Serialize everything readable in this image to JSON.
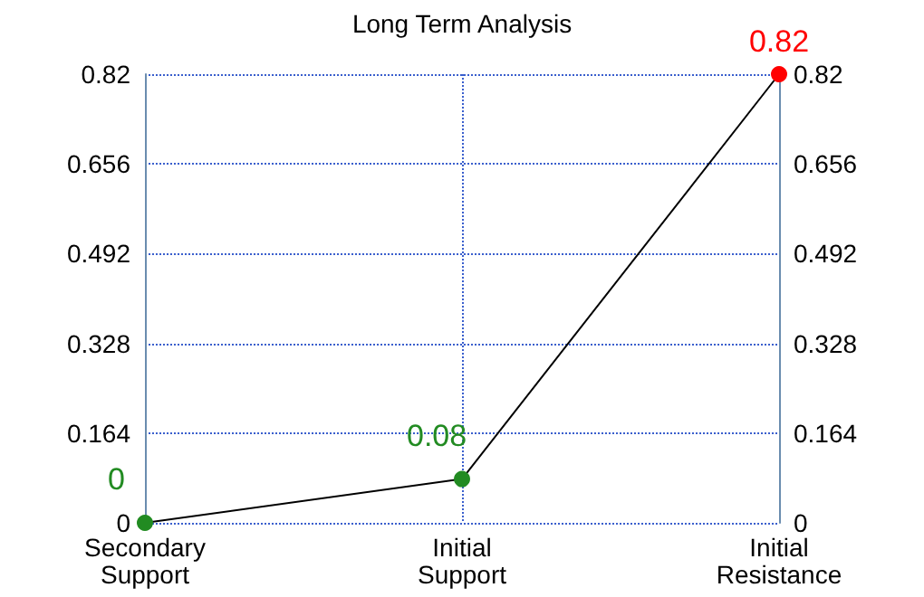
{
  "chart_data": {
    "type": "line",
    "title": "Long Term Analysis",
    "categories": [
      "Secondary Support",
      "Initial Support",
      "Initial Resistance"
    ],
    "series": [
      {
        "color": "#000000",
        "colors": [
          "#228b22",
          "#228b22",
          "#ff0000"
        ],
        "values": [
          0,
          0.08,
          0.82
        ]
      }
    ],
    "ylim": [
      0,
      0.82
    ],
    "yticks": [
      0,
      0.164,
      0.328,
      0.492,
      0.656,
      0.82
    ],
    "y2lim": [
      0,
      0.82
    ],
    "y2ticks": [
      0,
      0.164,
      0.328,
      0.492,
      0.656,
      0.82
    ],
    "grid": true,
    "marker": "circle",
    "line_style": "solid",
    "data_labels": true
  }
}
